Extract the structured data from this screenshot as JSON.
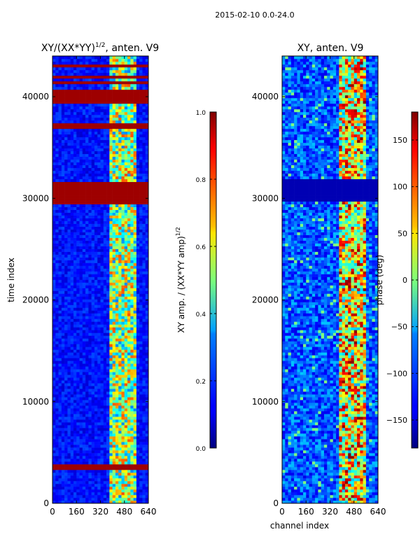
{
  "suptitle": "2015-02-10 0.0-24.0",
  "chart_data": [
    {
      "type": "heatmap",
      "title_main": "XY/(XX*YY)",
      "title_sup": "1/2",
      "title_suffix": ", anten. V9",
      "xlabel": "",
      "ylabel": "time index",
      "xlim": [
        0,
        640
      ],
      "ylim": [
        0,
        44000
      ],
      "xticks": [
        0,
        160,
        320,
        480,
        640
      ],
      "yticks": [
        0,
        10000,
        20000,
        30000,
        40000
      ],
      "colormap": "jet",
      "colorbar": {
        "label_main": "XY amp. / (XX*YY amp)",
        "label_sup": "1/2",
        "range": [
          0.0,
          1.0
        ],
        "ticks": [
          "0.0",
          "0.2",
          "0.4",
          "0.6",
          "0.8",
          "1.0"
        ]
      },
      "saturated_time_bands": [
        [
          3400,
          3900
        ],
        [
          29300,
          31600
        ],
        [
          36800,
          37500
        ],
        [
          39300,
          40600
        ],
        [
          41300,
          41600
        ],
        [
          41900,
          42200
        ],
        [
          42800,
          43100
        ]
      ]
    },
    {
      "type": "heatmap",
      "title": "XY, anten. V9",
      "xlabel": "channel index",
      "ylabel": "",
      "xlim": [
        0,
        640
      ],
      "ylim": [
        0,
        44000
      ],
      "xticks": [
        0,
        160,
        320,
        480,
        640
      ],
      "yticks": [
        0,
        10000,
        20000,
        30000,
        40000
      ],
      "colormap": "jet",
      "colorbar": {
        "label": "phase (deg)",
        "range": [
          -180,
          180
        ],
        "ticks": [
          "-150",
          "-100",
          "-50",
          "0",
          "50",
          "100",
          "150"
        ]
      },
      "low_value_time_bands": [
        [
          29700,
          31800
        ]
      ]
    }
  ]
}
